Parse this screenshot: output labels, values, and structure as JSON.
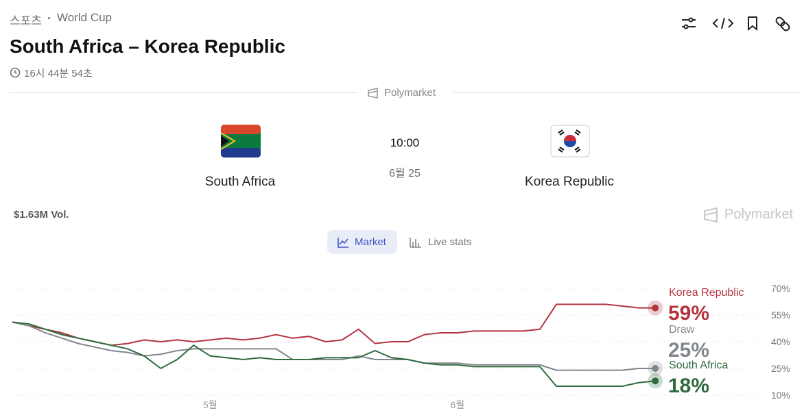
{
  "header": {
    "breadcrumb": [
      "스포츠",
      "World Cup"
    ],
    "title": "South Africa – Korea Republic",
    "countdown": "16시 44분 54초"
  },
  "source": "Polymarket",
  "match": {
    "home": "South Africa",
    "away": "Korea Republic",
    "time": "10:00",
    "date": "6월 25"
  },
  "volume": "$1.63M Vol.",
  "tabs": [
    "Market",
    "Live stats"
  ],
  "chart_data": {
    "type": "line",
    "categories": [
      null,
      null,
      null,
      null,
      null,
      null,
      null,
      null,
      null,
      null,
      null,
      null,
      "5월",
      null,
      null,
      null,
      null,
      null,
      null,
      null,
      null,
      null,
      null,
      null,
      null,
      null,
      null,
      "6월",
      null,
      null,
      null,
      null,
      null,
      null,
      null,
      null,
      null,
      null,
      null,
      null
    ],
    "ylim": [
      10,
      70
    ],
    "yticks": [
      {
        "value": 10,
        "label": "10%"
      },
      {
        "value": 25,
        "label": "25%"
      },
      {
        "value": 40,
        "label": "40%"
      },
      {
        "value": 55,
        "label": "55%"
      },
      {
        "value": 70,
        "label": "70%"
      }
    ],
    "grid": true,
    "series": [
      {
        "name": "Korea Republic",
        "color": "#b3343d",
        "values": [
          51,
          49,
          47,
          45,
          42,
          40,
          38,
          39,
          41,
          40,
          41,
          40,
          41,
          42,
          41,
          42,
          44,
          42,
          43,
          40,
          41,
          47,
          39,
          40,
          40,
          44,
          45,
          45,
          46,
          46,
          46,
          46,
          47,
          61,
          61,
          61,
          61,
          60,
          59,
          59
        ],
        "value_labels": [
          null,
          null,
          null,
          null,
          null,
          null,
          null,
          null,
          null,
          null,
          null,
          null,
          null,
          null,
          null,
          null,
          null,
          null,
          null,
          null,
          null,
          null,
          null,
          null,
          null,
          null,
          null,
          null,
          null,
          null,
          null,
          null,
          null,
          null,
          null,
          null,
          null,
          null,
          null,
          "59%"
        ]
      },
      {
        "name": "Draw",
        "color": "#80868d",
        "values": [
          51,
          49,
          45,
          42,
          39,
          37,
          35,
          34,
          32,
          33,
          35,
          36,
          36,
          36,
          36,
          36,
          36,
          30,
          30,
          30,
          30,
          32,
          30,
          30,
          30,
          28,
          28,
          28,
          27,
          27,
          27,
          27,
          27,
          24,
          24,
          24,
          24,
          24,
          25,
          25
        ],
        "value_labels": [
          null,
          null,
          null,
          null,
          null,
          null,
          null,
          null,
          null,
          null,
          null,
          null,
          null,
          null,
          null,
          null,
          null,
          null,
          null,
          null,
          null,
          null,
          null,
          null,
          null,
          null,
          null,
          null,
          null,
          null,
          null,
          null,
          null,
          null,
          null,
          null,
          null,
          null,
          null,
          "25%"
        ]
      },
      {
        "name": "South Africa",
        "color": "#2f6b3e",
        "values": [
          51,
          50,
          47,
          44,
          42,
          40,
          38,
          36,
          32,
          25,
          30,
          38,
          32,
          31,
          30,
          31,
          30,
          30,
          30,
          31,
          31,
          31,
          35,
          31,
          30,
          28,
          27,
          27,
          26,
          26,
          26,
          26,
          26,
          15,
          15,
          15,
          15,
          15,
          17,
          18
        ],
        "value_labels": [
          null,
          null,
          null,
          null,
          null,
          null,
          null,
          null,
          null,
          null,
          null,
          null,
          null,
          null,
          null,
          null,
          null,
          null,
          null,
          null,
          null,
          null,
          null,
          null,
          null,
          null,
          null,
          null,
          null,
          null,
          null,
          null,
          null,
          null,
          null,
          null,
          null,
          null,
          null,
          "18%"
        ]
      }
    ]
  }
}
